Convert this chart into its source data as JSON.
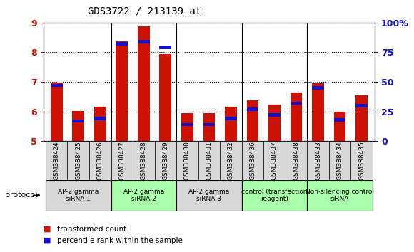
{
  "title": "GDS3722 / 213139_at",
  "samples": [
    "GSM388424",
    "GSM388425",
    "GSM388426",
    "GSM388427",
    "GSM388428",
    "GSM388429",
    "GSM388430",
    "GSM388431",
    "GSM388432",
    "GSM388436",
    "GSM388437",
    "GSM388438",
    "GSM388433",
    "GSM388434",
    "GSM388435"
  ],
  "transformed_count": [
    6.97,
    6.01,
    6.15,
    8.37,
    8.87,
    7.95,
    5.95,
    5.95,
    6.15,
    6.38,
    6.22,
    6.63,
    6.95,
    5.98,
    6.55
  ],
  "percentile_rank": [
    47,
    17,
    19,
    82,
    84,
    79,
    14,
    14,
    19,
    27,
    22,
    32,
    45,
    18,
    30
  ],
  "y_min": 5,
  "y_max": 9,
  "y_ticks": [
    5,
    6,
    7,
    8,
    9
  ],
  "y2_ticks": [
    0,
    25,
    50,
    75,
    100
  ],
  "bar_color_red": "#cc1100",
  "bar_color_blue": "#1111cc",
  "bg_color": "#ffffff",
  "sample_bg": "#d8d8d8",
  "groups": [
    {
      "label": "AP-2 gamma\nsiRNA 1",
      "indices": [
        0,
        1,
        2
      ],
      "color": "#d8d8d8"
    },
    {
      "label": "AP-2 gamma\nsiRNA 2",
      "indices": [
        3,
        4,
        5
      ],
      "color": "#aaffaa"
    },
    {
      "label": "AP-2 gamma\nsiRNA 3",
      "indices": [
        6,
        7,
        8
      ],
      "color": "#d8d8d8"
    },
    {
      "label": "control (transfection\nreagent)",
      "indices": [
        9,
        10,
        11
      ],
      "color": "#aaffaa"
    },
    {
      "label": "Non-silencing control\nsiRNA",
      "indices": [
        12,
        13,
        14
      ],
      "color": "#aaffaa"
    }
  ],
  "group_boundaries": [
    -0.5,
    2.5,
    5.5,
    8.5,
    11.5,
    14.5
  ],
  "protocol_label": "protocol",
  "legend_items": [
    {
      "label": "transformed count",
      "color": "#cc1100"
    },
    {
      "label": "percentile rank within the sample",
      "color": "#1111cc"
    }
  ]
}
